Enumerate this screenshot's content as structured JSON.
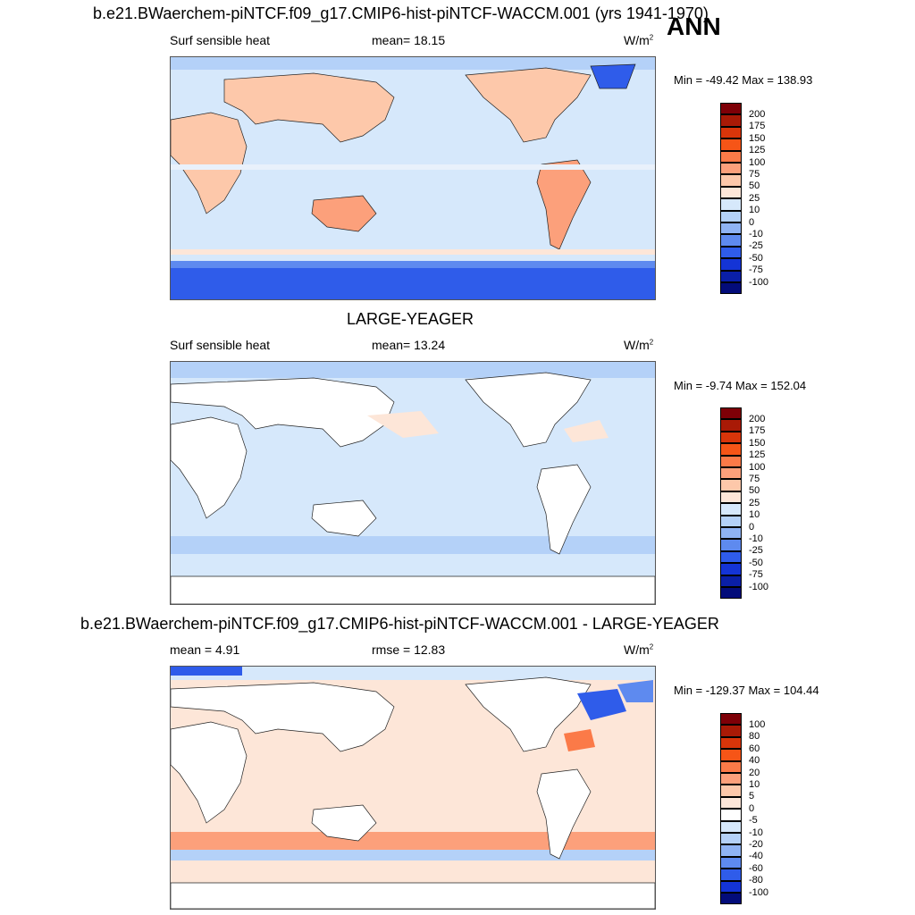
{
  "season": "ANN",
  "panels": [
    {
      "title": "b.e21.BWaerchem-piNTCF.f09_g17.CMIP6-hist-piNTCF-WACCM.001 (yrs 1941-1970)",
      "left_label": "Surf sensible heat",
      "center_label": "mean=  18.15",
      "units": "W/m",
      "units_exp": "2",
      "minmax": "Min = -49.42 Max = 138.93",
      "colorbar": {
        "labels": [
          "200",
          "175",
          "150",
          "125",
          "100",
          "75",
          "50",
          "25",
          "10",
          "0",
          "-10",
          "-25",
          "-50",
          "-75",
          "-100"
        ],
        "colors": [
          "#7e0007",
          "#a91a06",
          "#d8350a",
          "#f65517",
          "#fb7a48",
          "#fca07b",
          "#fdc8aa",
          "#fde6d8",
          "#d6e8fb",
          "#b4d1f8",
          "#8fb3f4",
          "#5e8aef",
          "#2f5cea",
          "#1434d6",
          "#0a1fa7",
          "#030c7a"
        ]
      }
    },
    {
      "title": "LARGE-YEAGER",
      "left_label": "Surf sensible heat",
      "center_label": "mean=  13.24",
      "units": "W/m",
      "units_exp": "2",
      "minmax": "Min =  -9.74 Max = 152.04",
      "colorbar": {
        "labels": [
          "200",
          "175",
          "150",
          "125",
          "100",
          "75",
          "50",
          "25",
          "10",
          "0",
          "-10",
          "-25",
          "-50",
          "-75",
          "-100"
        ],
        "colors": [
          "#7e0007",
          "#a91a06",
          "#d8350a",
          "#f65517",
          "#fb7a48",
          "#fca07b",
          "#fdc8aa",
          "#fde6d8",
          "#d6e8fb",
          "#b4d1f8",
          "#8fb3f4",
          "#5e8aef",
          "#2f5cea",
          "#1434d6",
          "#0a1fa7",
          "#030c7a"
        ]
      }
    },
    {
      "title": "b.e21.BWaerchem-piNTCF.f09_g17.CMIP6-hist-piNTCF-WACCM.001 - LARGE-YEAGER",
      "left_label": "mean =   4.91",
      "center_label": "rmse =  12.83",
      "units": "W/m",
      "units_exp": "2",
      "minmax": "Min = -129.37 Max = 104.44",
      "colorbar": {
        "labels": [
          "100",
          "80",
          "60",
          "40",
          "20",
          "10",
          "5",
          "0",
          "-5",
          "-10",
          "-20",
          "-40",
          "-60",
          "-80",
          "-100"
        ],
        "colors": [
          "#7e0007",
          "#a91a06",
          "#d8350a",
          "#f65517",
          "#fb7a48",
          "#fca07b",
          "#fdc8aa",
          "#fde6d8",
          "#ffffff",
          "#d6e8fb",
          "#b4d1f8",
          "#8fb3f4",
          "#5e8aef",
          "#2f5cea",
          "#1434d6",
          "#030c7a"
        ]
      }
    }
  ]
}
